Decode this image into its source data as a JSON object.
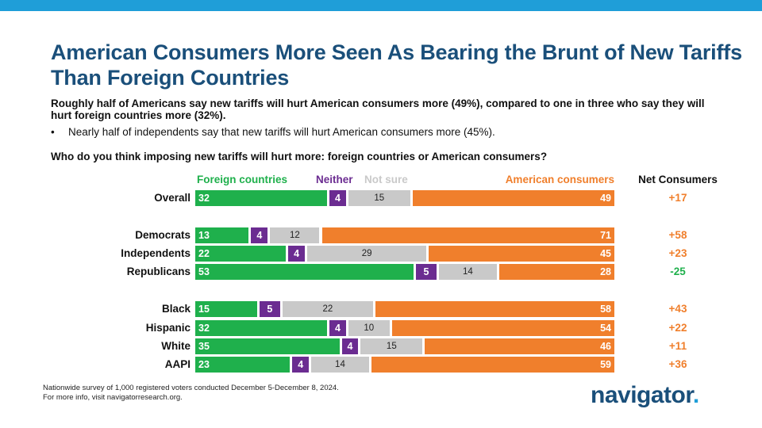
{
  "header": {
    "title": "American Consumers More Seen As Bearing the Brunt of New Tariffs Than Foreign Countries",
    "subtitle": "Roughly half of Americans say new tariffs will hurt American consumers more (49%), compared to one in three who say they will hurt foreign countries more (32%).",
    "bullet": "Nearly half of independents say that new tariffs will hurt American consumers more (45%).",
    "question": "Who do you think imposing new tariffs will hurt more: foreign countries or American consumers?"
  },
  "colors": {
    "foreign": "#1fb04c",
    "neither": "#6b2c91",
    "not_sure": "#c9c9c9",
    "consumers": "#f07f2c",
    "title": "#1a4f7a",
    "accent": "#1f9ed8"
  },
  "chart_data": {
    "type": "bar",
    "stacked": true,
    "orientation": "horizontal",
    "categories": [
      "Overall",
      "Democrats",
      "Independents",
      "Republicans",
      "Black",
      "Hispanic",
      "White",
      "AAPI"
    ],
    "series": [
      {
        "name": "Foreign countries",
        "values": [
          32,
          13,
          22,
          53,
          15,
          32,
          35,
          23
        ]
      },
      {
        "name": "Neither",
        "values": [
          4,
          4,
          4,
          5,
          5,
          4,
          4,
          4
        ]
      },
      {
        "name": "Not sure",
        "values": [
          15,
          12,
          29,
          14,
          22,
          10,
          15,
          14
        ]
      },
      {
        "name": "American consumers",
        "values": [
          49,
          71,
          45,
          28,
          58,
          54,
          46,
          59
        ]
      }
    ],
    "net_header": "Net Consumers",
    "net": [
      "+17",
      "+58",
      "+23",
      "-25",
      "+43",
      "+22",
      "+11",
      "+36"
    ],
    "legend_placement": "top"
  },
  "footnote": {
    "line1": "Nationwide survey of 1,000 registered voters conducted December 5-December 8, 2024.",
    "line2": "For more info, visit navigatorresearch.org."
  },
  "logo": {
    "text": "navigator",
    "dot": "."
  }
}
